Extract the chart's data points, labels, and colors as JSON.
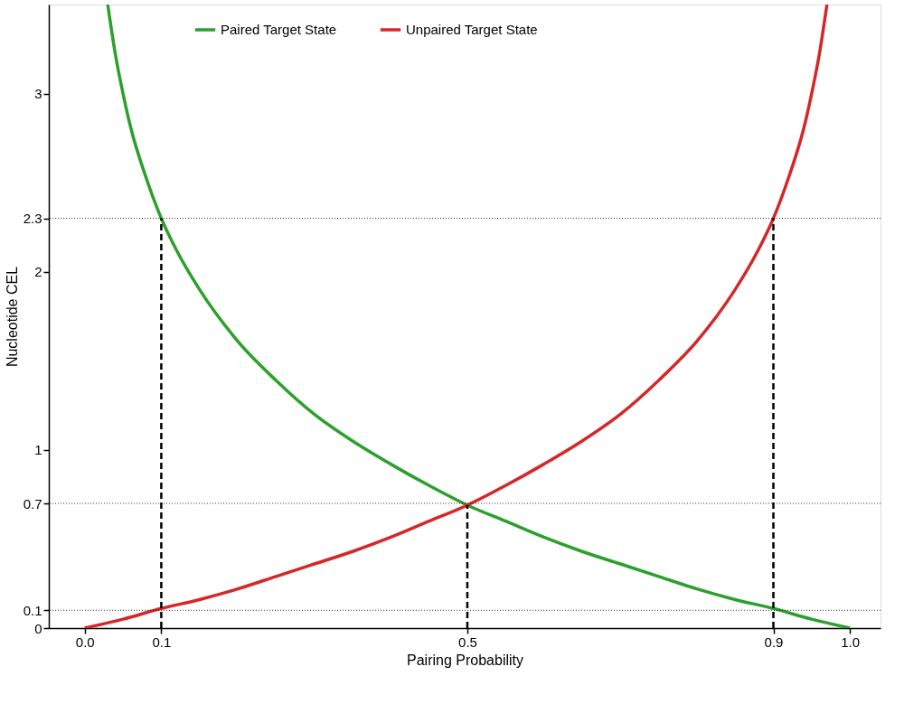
{
  "chart_data": {
    "type": "line",
    "xlabel": "Pairing Probability",
    "ylabel": "Nucleotide CEL",
    "xlim": [
      -0.047,
      1.04
    ],
    "ylim": [
      0,
      3.5
    ],
    "xticks": [
      {
        "value": 0,
        "label": "0.0"
      },
      0.1,
      0.5,
      0.9,
      {
        "value": 1,
        "label": "1.0"
      }
    ],
    "yticks": [
      0,
      0.1,
      0.7,
      1,
      2,
      2.3,
      3
    ],
    "legend": "top",
    "grid": false,
    "line_style": "solid",
    "marker": "none",
    "series": [
      {
        "name": "Paired Target State",
        "color": "#2ca02c",
        "x": [
          0.03,
          0.04,
          0.05,
          0.06,
          0.08,
          0.1,
          0.12,
          0.15,
          0.2,
          0.25,
          0.3,
          0.35,
          0.4,
          0.45,
          0.5,
          0.55,
          0.6,
          0.65,
          0.7,
          0.75,
          0.8,
          0.85,
          0.9,
          0.95,
          1.0
        ],
        "values": [
          3.5,
          3.22,
          3.0,
          2.81,
          2.53,
          2.3,
          2.12,
          1.9,
          1.61,
          1.39,
          1.2,
          1.05,
          0.92,
          0.8,
          0.69,
          0.6,
          0.51,
          0.43,
          0.36,
          0.29,
          0.22,
          0.16,
          0.11,
          0.05,
          0
        ]
      },
      {
        "name": "Unpaired Target State",
        "color": "#d62728",
        "x": [
          0,
          0.05,
          0.1,
          0.15,
          0.2,
          0.25,
          0.3,
          0.35,
          0.4,
          0.45,
          0.5,
          0.55,
          0.6,
          0.65,
          0.7,
          0.75,
          0.8,
          0.85,
          0.88,
          0.9,
          0.92,
          0.94,
          0.95,
          0.96,
          0.97
        ],
        "values": [
          0,
          0.05,
          0.11,
          0.16,
          0.22,
          0.29,
          0.36,
          0.43,
          0.51,
          0.6,
          0.69,
          0.8,
          0.92,
          1.05,
          1.2,
          1.39,
          1.61,
          1.9,
          2.12,
          2.3,
          2.53,
          2.81,
          3.0,
          3.22,
          3.5
        ]
      },
      {
        "color": "#000000",
        "line_style": "dashed",
        "x": [
          0.1,
          0.1
        ],
        "values": [
          0,
          2.3
        ]
      },
      {
        "color": "#000000",
        "line_style": "dashed",
        "x": [
          0.5,
          0.5
        ],
        "values": [
          0,
          0.69
        ]
      },
      {
        "color": "#000000",
        "line_style": "dashed",
        "x": [
          0.9,
          0.9
        ],
        "values": [
          0,
          2.3
        ]
      }
    ],
    "ref_lines": [
      {
        "axis": "y",
        "value": 2.3,
        "color": "#000000",
        "line_style": "dotted"
      },
      {
        "axis": "y",
        "value": 0.7,
        "color": "#000000",
        "line_style": "dotted"
      },
      {
        "axis": "y",
        "value": 0.1,
        "color": "#000000",
        "line_style": "dotted"
      }
    ]
  }
}
